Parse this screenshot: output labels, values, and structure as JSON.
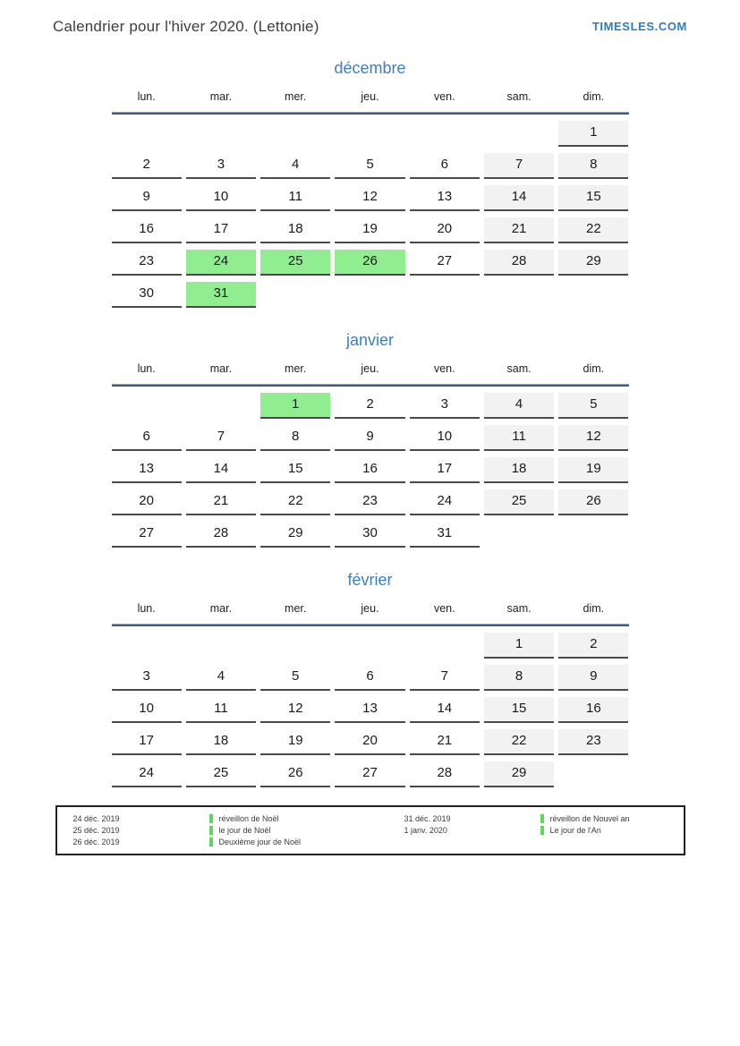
{
  "header": {
    "title": "Calendrier pour l'hiver 2020. (Lettonie)",
    "brand": "TIMESLES.COM"
  },
  "weekdays": [
    "lun.",
    "mar.",
    "mer.",
    "jeu.",
    "ven.",
    "sam.",
    "dim."
  ],
  "months": [
    {
      "name": "décembre",
      "weeks": [
        [
          null,
          null,
          null,
          null,
          null,
          null,
          {
            "day": 1,
            "type": "weekend"
          }
        ],
        [
          {
            "day": 2,
            "type": "normal"
          },
          {
            "day": 3,
            "type": "normal"
          },
          {
            "day": 4,
            "type": "normal"
          },
          {
            "day": 5,
            "type": "normal"
          },
          {
            "day": 6,
            "type": "normal"
          },
          {
            "day": 7,
            "type": "weekend"
          },
          {
            "day": 8,
            "type": "weekend"
          }
        ],
        [
          {
            "day": 9,
            "type": "normal"
          },
          {
            "day": 10,
            "type": "normal"
          },
          {
            "day": 11,
            "type": "normal"
          },
          {
            "day": 12,
            "type": "normal"
          },
          {
            "day": 13,
            "type": "normal"
          },
          {
            "day": 14,
            "type": "weekend"
          },
          {
            "day": 15,
            "type": "weekend"
          }
        ],
        [
          {
            "day": 16,
            "type": "normal"
          },
          {
            "day": 17,
            "type": "normal"
          },
          {
            "day": 18,
            "type": "normal"
          },
          {
            "day": 19,
            "type": "normal"
          },
          {
            "day": 20,
            "type": "normal"
          },
          {
            "day": 21,
            "type": "weekend"
          },
          {
            "day": 22,
            "type": "weekend"
          }
        ],
        [
          {
            "day": 23,
            "type": "normal"
          },
          {
            "day": 24,
            "type": "holiday"
          },
          {
            "day": 25,
            "type": "holiday"
          },
          {
            "day": 26,
            "type": "holiday"
          },
          {
            "day": 27,
            "type": "normal"
          },
          {
            "day": 28,
            "type": "weekend"
          },
          {
            "day": 29,
            "type": "weekend"
          }
        ],
        [
          {
            "day": 30,
            "type": "normal"
          },
          {
            "day": 31,
            "type": "holiday"
          },
          null,
          null,
          null,
          null,
          null
        ]
      ]
    },
    {
      "name": "janvier",
      "weeks": [
        [
          null,
          null,
          {
            "day": 1,
            "type": "holiday"
          },
          {
            "day": 2,
            "type": "normal"
          },
          {
            "day": 3,
            "type": "normal"
          },
          {
            "day": 4,
            "type": "weekend"
          },
          {
            "day": 5,
            "type": "weekend"
          }
        ],
        [
          {
            "day": 6,
            "type": "normal"
          },
          {
            "day": 7,
            "type": "normal"
          },
          {
            "day": 8,
            "type": "normal"
          },
          {
            "day": 9,
            "type": "normal"
          },
          {
            "day": 10,
            "type": "normal"
          },
          {
            "day": 11,
            "type": "weekend"
          },
          {
            "day": 12,
            "type": "weekend"
          }
        ],
        [
          {
            "day": 13,
            "type": "normal"
          },
          {
            "day": 14,
            "type": "normal"
          },
          {
            "day": 15,
            "type": "normal"
          },
          {
            "day": 16,
            "type": "normal"
          },
          {
            "day": 17,
            "type": "normal"
          },
          {
            "day": 18,
            "type": "weekend"
          },
          {
            "day": 19,
            "type": "weekend"
          }
        ],
        [
          {
            "day": 20,
            "type": "normal"
          },
          {
            "day": 21,
            "type": "normal"
          },
          {
            "day": 22,
            "type": "normal"
          },
          {
            "day": 23,
            "type": "normal"
          },
          {
            "day": 24,
            "type": "normal"
          },
          {
            "day": 25,
            "type": "weekend"
          },
          {
            "day": 26,
            "type": "weekend"
          }
        ],
        [
          {
            "day": 27,
            "type": "normal"
          },
          {
            "day": 28,
            "type": "normal"
          },
          {
            "day": 29,
            "type": "normal"
          },
          {
            "day": 30,
            "type": "normal"
          },
          {
            "day": 31,
            "type": "normal"
          },
          null,
          null
        ]
      ]
    },
    {
      "name": "février",
      "weeks": [
        [
          null,
          null,
          null,
          null,
          null,
          {
            "day": 1,
            "type": "weekend"
          },
          {
            "day": 2,
            "type": "weekend"
          }
        ],
        [
          {
            "day": 3,
            "type": "normal"
          },
          {
            "day": 4,
            "type": "normal"
          },
          {
            "day": 5,
            "type": "normal"
          },
          {
            "day": 6,
            "type": "normal"
          },
          {
            "day": 7,
            "type": "normal"
          },
          {
            "day": 8,
            "type": "weekend"
          },
          {
            "day": 9,
            "type": "weekend"
          }
        ],
        [
          {
            "day": 10,
            "type": "normal"
          },
          {
            "day": 11,
            "type": "normal"
          },
          {
            "day": 12,
            "type": "normal"
          },
          {
            "day": 13,
            "type": "normal"
          },
          {
            "day": 14,
            "type": "normal"
          },
          {
            "day": 15,
            "type": "weekend"
          },
          {
            "day": 16,
            "type": "weekend"
          }
        ],
        [
          {
            "day": 17,
            "type": "normal"
          },
          {
            "day": 18,
            "type": "normal"
          },
          {
            "day": 19,
            "type": "normal"
          },
          {
            "day": 20,
            "type": "normal"
          },
          {
            "day": 21,
            "type": "normal"
          },
          {
            "day": 22,
            "type": "weekend"
          },
          {
            "day": 23,
            "type": "weekend"
          }
        ],
        [
          {
            "day": 24,
            "type": "normal"
          },
          {
            "day": 25,
            "type": "normal"
          },
          {
            "day": 26,
            "type": "normal"
          },
          {
            "day": 27,
            "type": "normal"
          },
          {
            "day": 28,
            "type": "normal"
          },
          {
            "day": 29,
            "type": "weekend"
          },
          null
        ]
      ]
    }
  ],
  "legend": {
    "columns": [
      {
        "entries": [
          {
            "date": "24 déc. 2019",
            "label": "réveillon de Noël"
          },
          {
            "date": "25 déc. 2019",
            "label": "le jour de Noël"
          },
          {
            "date": "26 déc. 2019",
            "label": "Deuxième jour de Noël"
          }
        ]
      },
      {
        "entries": [
          {
            "date": "31 déc. 2019",
            "label": "réveillon de Nouvel an"
          },
          {
            "date": "1 janv. 2020",
            "label": "Le jour de l'An"
          }
        ]
      }
    ]
  },
  "colors": {
    "month_title": "#3d7ebf",
    "brand": "#2e7cbf",
    "header_rule": "#3a5d80",
    "holiday_bg": "#90ee90",
    "weekend_bg": "#f2f2f2",
    "cell_border": "#4a4a4a",
    "legend_marker": "#5ed75e"
  }
}
